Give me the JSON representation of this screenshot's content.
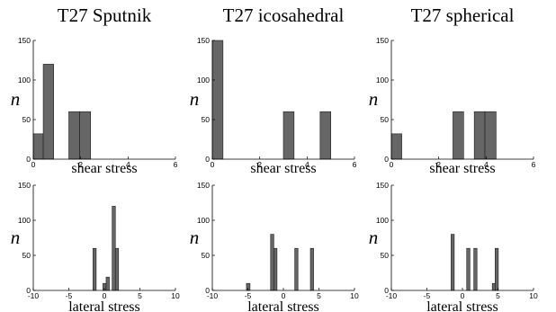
{
  "chart_data": [
    {
      "type": "bar",
      "title": "T27 Sputnik",
      "xlabel": "shear stress",
      "ylabel": "n",
      "xlim": [
        0,
        6
      ],
      "ylim": [
        0,
        150
      ],
      "xticks": [
        "0",
        "2",
        "4",
        "6"
      ],
      "yticks": [
        "0",
        "50",
        "100",
        "150"
      ],
      "bins": [
        {
          "x0": 0.0,
          "x1": 0.42,
          "value": 32
        },
        {
          "x0": 0.42,
          "x1": 0.86,
          "value": 120
        },
        {
          "x0": 1.5,
          "x1": 1.96,
          "value": 60
        },
        {
          "x0": 1.96,
          "x1": 2.42,
          "value": 60
        }
      ]
    },
    {
      "type": "bar",
      "title": "T27 icosahedral",
      "xlabel": "shear stress",
      "ylabel": "n",
      "xlim": [
        0,
        6
      ],
      "ylim": [
        0,
        150
      ],
      "xticks": [
        "0",
        "2",
        "4",
        "6"
      ],
      "yticks": [
        "0",
        "50",
        "100",
        "150"
      ],
      "bins": [
        {
          "x0": 0.0,
          "x1": 0.45,
          "value": 150
        },
        {
          "x0": 3.0,
          "x1": 3.45,
          "value": 60
        },
        {
          "x0": 4.55,
          "x1": 5.0,
          "value": 60
        }
      ]
    },
    {
      "type": "bar",
      "title": "T27 spherical",
      "xlabel": "shear stress",
      "ylabel": "n",
      "xlim": [
        0,
        6
      ],
      "ylim": [
        0,
        150
      ],
      "xticks": [
        "0",
        "2",
        "4",
        "6"
      ],
      "yticks": [
        "0",
        "50",
        "100",
        "150"
      ],
      "bins": [
        {
          "x0": 0.0,
          "x1": 0.44,
          "value": 32
        },
        {
          "x0": 2.6,
          "x1": 3.05,
          "value": 60
        },
        {
          "x0": 3.5,
          "x1": 3.95,
          "value": 60
        },
        {
          "x0": 3.95,
          "x1": 4.42,
          "value": 60
        }
      ]
    },
    {
      "type": "bar",
      "title": "",
      "xlabel": "lateral stress",
      "ylabel": "n",
      "xlim": [
        -10,
        10
      ],
      "ylim": [
        0,
        150
      ],
      "xticks": [
        "-10",
        "-5",
        "0",
        "5",
        "10"
      ],
      "yticks": [
        "0",
        "50",
        "100",
        "150"
      ],
      "bins": [
        {
          "x0": -1.6,
          "x1": -1.15,
          "value": 60
        },
        {
          "x0": -0.2,
          "x1": 0.25,
          "value": 10
        },
        {
          "x0": 0.25,
          "x1": 0.7,
          "value": 19
        },
        {
          "x0": 1.1,
          "x1": 1.55,
          "value": 120
        },
        {
          "x0": 1.55,
          "x1": 2.0,
          "value": 60
        }
      ]
    },
    {
      "type": "bar",
      "title": "",
      "xlabel": "lateral stress",
      "ylabel": "n",
      "xlim": [
        -10,
        10
      ],
      "ylim": [
        0,
        150
      ],
      "xticks": [
        "-10",
        "-5",
        "0",
        "5",
        "10"
      ],
      "yticks": [
        "0",
        "50",
        "100",
        "150"
      ],
      "bins": [
        {
          "x0": -5.2,
          "x1": -4.7,
          "value": 10
        },
        {
          "x0": -1.8,
          "x1": -1.35,
          "value": 80
        },
        {
          "x0": -1.35,
          "x1": -0.9,
          "value": 60
        },
        {
          "x0": 1.6,
          "x1": 2.05,
          "value": 60
        },
        {
          "x0": 3.8,
          "x1": 4.25,
          "value": 60
        }
      ]
    },
    {
      "type": "bar",
      "title": "",
      "xlabel": "lateral stress",
      "ylabel": "n",
      "xlim": [
        -10,
        10
      ],
      "ylim": [
        0,
        150
      ],
      "xticks": [
        "-10",
        "-5",
        "0",
        "5",
        "10"
      ],
      "yticks": [
        "0",
        "50",
        "100",
        "150"
      ],
      "bins": [
        {
          "x0": -1.6,
          "x1": -1.15,
          "value": 80
        },
        {
          "x0": 0.6,
          "x1": 1.05,
          "value": 60
        },
        {
          "x0": 1.6,
          "x1": 2.05,
          "value": 60
        },
        {
          "x0": 4.2,
          "x1": 4.6,
          "value": 10
        },
        {
          "x0": 4.6,
          "x1": 5.05,
          "value": 60
        }
      ]
    }
  ]
}
